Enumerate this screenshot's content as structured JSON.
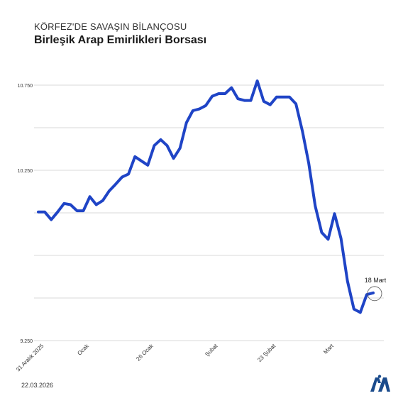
{
  "header": {
    "kicker": "KÖRFEZ'DE SAVAŞIN BİLANÇOSU",
    "title": "Birleşik Arap Emirlikleri Borsası"
  },
  "footer": {
    "date": "22.03.2026",
    "logo_icon": "aa-logo-icon"
  },
  "colors": {
    "line": "#1f44c6",
    "grid": "#cccccc",
    "text": "#333333",
    "logo": "#1a4b8c"
  },
  "chart_data": {
    "type": "line",
    "title": "Birleşik Arap Emirlikleri Borsası",
    "xlabel": "",
    "ylabel": "",
    "ylim": [
      9250,
      10875
    ],
    "yticks": [
      {
        "value": 10750,
        "label": "10.750"
      },
      {
        "value": 10250,
        "label": "10.250"
      },
      {
        "value": 9250,
        "label": "9.250"
      }
    ],
    "gridlines": [
      10750,
      10500,
      10250,
      10000,
      9750,
      9500,
      9250
    ],
    "grid": true,
    "xticks": [
      {
        "index": 0,
        "label": "31 Aralık 2025"
      },
      {
        "index": 7,
        "label": "Ocak"
      },
      {
        "index": 17,
        "label": "26 Ocak"
      },
      {
        "index": 27,
        "label": "Şubat"
      },
      {
        "index": 36,
        "label": "23 Şubat"
      },
      {
        "index": 45,
        "label": "Mart"
      }
    ],
    "annotation": {
      "label": "18 Mart",
      "index": 52
    },
    "series": [
      {
        "name": "",
        "values": [
          10005,
          10005,
          9960,
          10005,
          10055,
          10048,
          10012,
          10012,
          10095,
          10048,
          10072,
          10128,
          10168,
          10210,
          10228,
          10330,
          10305,
          10280,
          10395,
          10430,
          10395,
          10320,
          10380,
          10530,
          10600,
          10610,
          10630,
          10685,
          10700,
          10700,
          10735,
          10670,
          10660,
          10660,
          10775,
          10655,
          10635,
          10680,
          10680,
          10680,
          10640,
          10480,
          10290,
          10040,
          9885,
          9845,
          9995,
          9850,
          9600,
          9435,
          9415,
          9520,
          9530
        ]
      }
    ]
  }
}
